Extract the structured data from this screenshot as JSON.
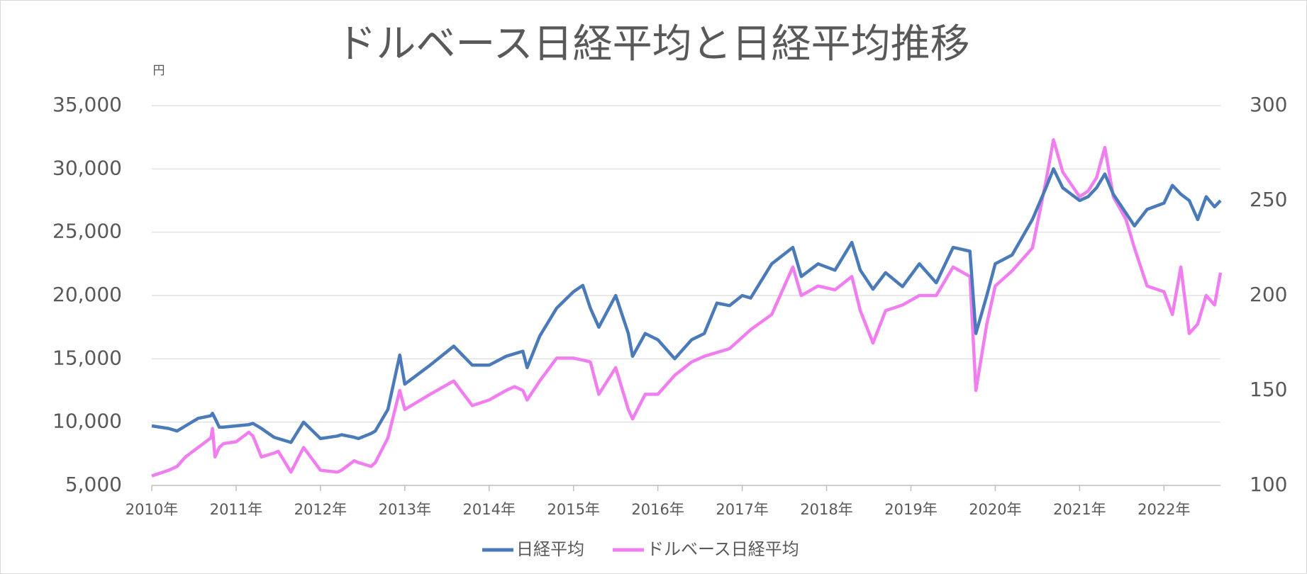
{
  "chart_data": {
    "type": "line",
    "title": "ドルベース日経平均と日経平均推移",
    "ylabel": "円",
    "x": [
      2010.0,
      2010.2,
      2010.3,
      2010.4,
      2010.55,
      2010.7,
      2010.72,
      2010.75,
      2010.8,
      2010.85,
      2011.0,
      2011.15,
      2011.2,
      2011.3,
      2011.45,
      2011.5,
      2011.65,
      2011.8,
      2012.0,
      2012.2,
      2012.25,
      2012.4,
      2012.45,
      2012.6,
      2012.65,
      2012.8,
      2012.94,
      2013.0,
      2013.3,
      2013.58,
      2013.8,
      2014.0,
      2014.2,
      2014.3,
      2014.4,
      2014.45,
      2014.6,
      2014.8,
      2015.0,
      2015.11,
      2015.2,
      2015.3,
      2015.5,
      2015.65,
      2015.7,
      2015.85,
      2016.0,
      2016.2,
      2016.4,
      2016.55,
      2016.7,
      2016.85,
      2017.0,
      2017.1,
      2017.35,
      2017.6,
      2017.7,
      2017.9,
      2018.1,
      2018.3,
      2018.4,
      2018.55,
      2018.7,
      2018.9,
      2019.1,
      2019.3,
      2019.5,
      2019.7,
      2019.77,
      2019.9,
      2020.0,
      2020.2,
      2020.44,
      2020.6,
      2020.69,
      2020.8,
      2021.0,
      2021.1,
      2021.2,
      2021.3,
      2021.4,
      2021.55,
      2021.65,
      2021.8,
      2022.0,
      2022.1,
      2022.2,
      2022.3,
      2022.4,
      2022.5,
      2022.6,
      2022.67
    ],
    "series": [
      {
        "name": "日経平均",
        "color": "#4a7ab8",
        "axis": "y",
        "values": [
          9700,
          9500,
          9300,
          9700,
          10300,
          10500,
          10700,
          10300,
          9600,
          9600,
          9700,
          9800,
          9900,
          9500,
          8800,
          8700,
          8400,
          10000,
          8700,
          8900,
          9000,
          8800,
          8700,
          9100,
          9300,
          11000,
          15300,
          13000,
          14500,
          16000,
          14500,
          14500,
          15200,
          15400,
          15600,
          14300,
          16800,
          19000,
          20300,
          20800,
          19000,
          17500,
          20000,
          17000,
          15200,
          17000,
          16500,
          15000,
          16500,
          17000,
          19400,
          19200,
          20000,
          19800,
          22500,
          23800,
          21500,
          22500,
          22000,
          24200,
          22000,
          20500,
          21800,
          20700,
          22500,
          21000,
          23800,
          23500,
          17000,
          20000,
          22500,
          23200,
          26000,
          28500,
          30000,
          28500,
          27500,
          27800,
          28500,
          29600,
          28000,
          26500,
          25500,
          26800,
          27300,
          28700,
          28000,
          27500,
          26000,
          27800,
          27000,
          27500
        ]
      },
      {
        "name": "ドルベース日経平均",
        "color": "#f07ef0",
        "axis": "y2",
        "values": [
          105,
          108,
          110,
          115,
          120,
          125,
          130,
          115,
          120,
          122,
          123,
          128,
          126,
          115,
          117,
          118,
          107,
          120,
          108,
          107,
          108,
          113,
          112,
          110,
          112,
          125,
          150,
          140,
          148,
          155,
          142,
          145,
          150,
          152,
          150,
          145,
          155,
          167,
          167,
          166,
          165,
          148,
          162,
          140,
          135,
          148,
          148,
          158,
          165,
          168,
          170,
          172,
          178,
          182,
          190,
          215,
          200,
          205,
          203,
          210,
          192,
          175,
          192,
          195,
          200,
          200,
          215,
          210,
          150,
          185,
          205,
          213,
          225,
          260,
          282,
          265,
          252,
          255,
          262,
          278,
          252,
          240,
          225,
          205,
          202,
          190,
          215,
          180,
          185,
          200,
          195,
          212
        ]
      }
    ],
    "xlim": [
      2010,
      2022.67
    ],
    "xticks": [
      {
        "value": 2010,
        "label": "2010年"
      },
      {
        "value": 2011,
        "label": "2011年"
      },
      {
        "value": 2012,
        "label": "2012年"
      },
      {
        "value": 2013,
        "label": "2013年"
      },
      {
        "value": 2014,
        "label": "2014年"
      },
      {
        "value": 2015,
        "label": "2015年"
      },
      {
        "value": 2016,
        "label": "2016年"
      },
      {
        "value": 2017,
        "label": "2017年"
      },
      {
        "value": 2018,
        "label": "2018年"
      },
      {
        "value": 2019,
        "label": "2019年"
      },
      {
        "value": 2020,
        "label": "2020年"
      },
      {
        "value": 2021,
        "label": "2021年"
      },
      {
        "value": 2022,
        "label": "2022年"
      }
    ],
    "ylim": [
      5000,
      35000
    ],
    "yticks": [
      {
        "value": 5000,
        "label": "5,000"
      },
      {
        "value": 10000,
        "label": "10,000"
      },
      {
        "value": 15000,
        "label": "15,000"
      },
      {
        "value": 20000,
        "label": "20,000"
      },
      {
        "value": 25000,
        "label": "25,000"
      },
      {
        "value": 30000,
        "label": "30,000"
      },
      {
        "value": 35000,
        "label": "35,000"
      }
    ],
    "y2lim": [
      100,
      300
    ],
    "y2ticks": [
      100,
      150,
      200,
      250,
      300
    ],
    "grid": true,
    "legend": "bottom"
  }
}
